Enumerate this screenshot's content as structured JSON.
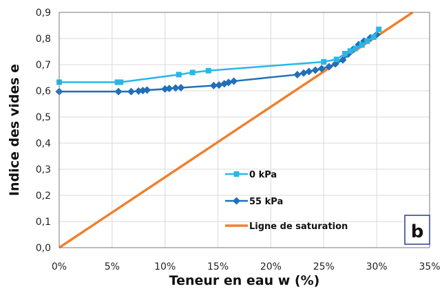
{
  "chart_data": {
    "type": "line",
    "xlabel": "Teneur en eau w (%)",
    "ylabel": "Indice des vides e",
    "xlim": [
      0,
      35
    ],
    "ylim": [
      0,
      0.9
    ],
    "x_ticks": [
      0,
      5,
      10,
      15,
      20,
      25,
      30,
      35
    ],
    "x_tick_labels": [
      "0%",
      "5%",
      "10%",
      "15%",
      "20%",
      "25%",
      "30%",
      "35%"
    ],
    "y_ticks": [
      0,
      0.1,
      0.2,
      0.3,
      0.4,
      0.5,
      0.6,
      0.7,
      0.8,
      0.9
    ],
    "y_tick_labels": [
      "0,0",
      "0,1",
      "0,2",
      "0,3",
      "0,4",
      "0,5",
      "0,6",
      "0,7",
      "0,8",
      "0,9"
    ],
    "grid": true,
    "legend_position": "bottom-right",
    "panel_label": "b",
    "series": [
      {
        "name": "0 kPa",
        "color": "#29b6e8",
        "marker": "square",
        "x": [
          0.0,
          5.5,
          5.8,
          11.3,
          12.6,
          14.1,
          25.0,
          26.2,
          27.0,
          27.5,
          28.0,
          28.6,
          29.1,
          29.7,
          30.2
        ],
        "y": [
          0.633,
          0.633,
          0.633,
          0.662,
          0.67,
          0.677,
          0.711,
          0.72,
          0.742,
          0.752,
          0.762,
          0.775,
          0.79,
          0.805,
          0.835
        ]
      },
      {
        "name": "55 kPa",
        "color": "#1f70b8",
        "marker": "diamond",
        "x": [
          0.0,
          5.6,
          6.8,
          7.5,
          7.9,
          8.3,
          10.0,
          10.4,
          11.0,
          11.5,
          14.6,
          15.1,
          15.6,
          16.0,
          16.5,
          22.5,
          23.1,
          23.6,
          24.2,
          24.8,
          25.5,
          26.1,
          26.8,
          27.3,
          27.8,
          28.3,
          28.8,
          29.4,
          30.0
        ],
        "y": [
          0.597,
          0.597,
          0.597,
          0.599,
          0.601,
          0.603,
          0.607,
          0.609,
          0.611,
          0.612,
          0.62,
          0.622,
          0.627,
          0.632,
          0.637,
          0.662,
          0.668,
          0.674,
          0.679,
          0.685,
          0.692,
          0.703,
          0.718,
          0.74,
          0.76,
          0.777,
          0.79,
          0.803,
          0.815
        ]
      },
      {
        "name": "Ligne de saturation",
        "color": "#f0802e",
        "marker": "none",
        "x": [
          0,
          33.4
        ],
        "y": [
          0,
          0.9
        ]
      }
    ]
  }
}
